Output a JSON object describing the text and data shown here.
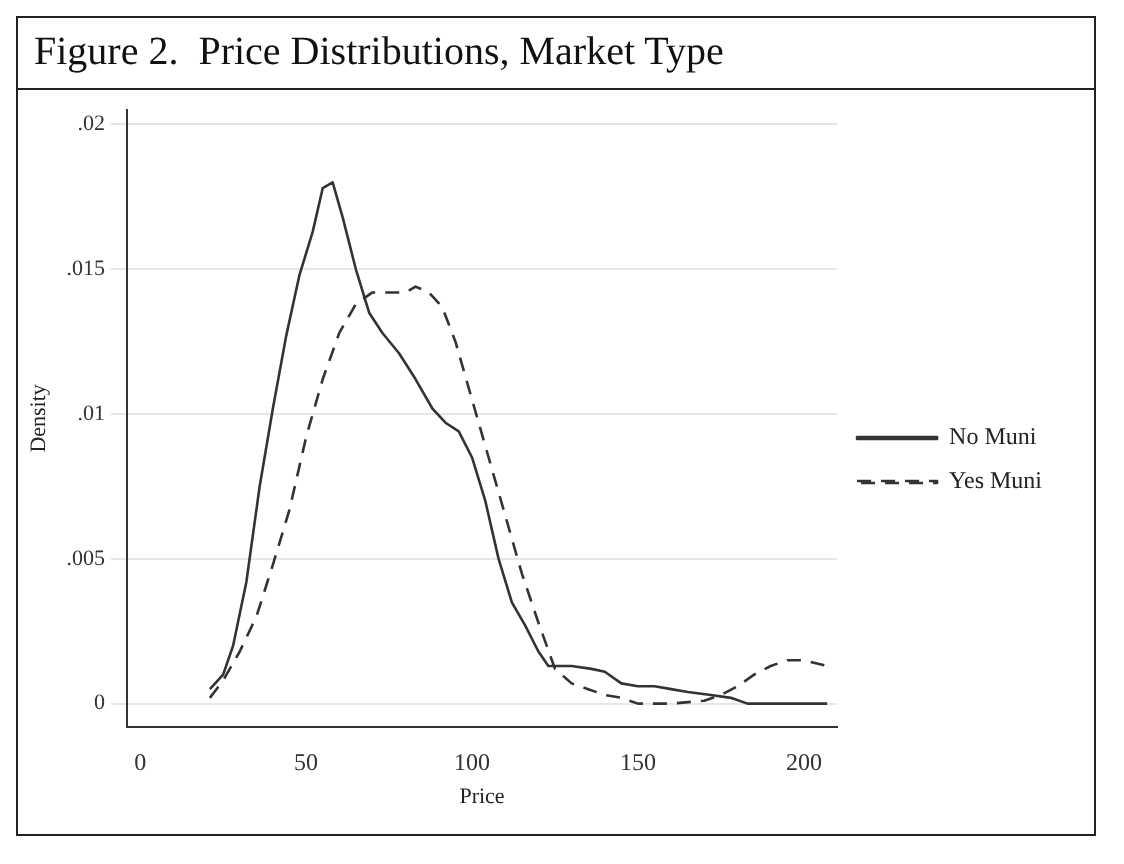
{
  "chart_data": {
    "type": "line",
    "title": "Figure 2.  Price Distributions, Market Type",
    "xlabel": "Price",
    "ylabel": "Density",
    "xlim": [
      -4,
      210
    ],
    "xticks": [
      0,
      50,
      100,
      150,
      200
    ],
    "ylim": [
      -0.0008,
      0.0205
    ],
    "yticks": [
      0,
      {
        "value": 0.005,
        "label": ".005"
      },
      {
        "value": 0.01,
        "label": ".01"
      },
      {
        "value": 0.015,
        "label": ".015"
      },
      {
        "value": 0.02,
        "label": ".02"
      }
    ],
    "grid": "y",
    "legend": "right",
    "marker": "none",
    "series": [
      {
        "name": "No Muni",
        "color": "#333333",
        "line_style": "solid",
        "x": [
          21,
          25,
          28,
          32,
          36,
          40,
          44,
          48,
          52,
          55,
          58,
          61,
          65,
          69,
          73,
          78,
          83,
          88,
          92,
          96,
          100,
          104,
          108,
          112,
          116,
          120,
          123,
          130,
          136,
          140,
          145,
          150,
          155,
          160,
          165,
          172,
          178,
          183,
          190,
          200,
          207
        ],
        "values": [
          0.0005,
          0.001,
          0.002,
          0.0042,
          0.0075,
          0.0102,
          0.0127,
          0.0148,
          0.0163,
          0.0178,
          0.018,
          0.0168,
          0.015,
          0.0135,
          0.0128,
          0.0121,
          0.0112,
          0.0102,
          0.0097,
          0.0094,
          0.0085,
          0.007,
          0.005,
          0.0035,
          0.0027,
          0.0018,
          0.0013,
          0.0013,
          0.0012,
          0.0011,
          0.0007,
          0.0006,
          0.0006,
          0.0005,
          0.0004,
          0.0003,
          0.0002,
          0,
          0,
          0,
          0
        ]
      },
      {
        "name": "Yes Muni",
        "color": "#333333",
        "line_style": "dashed",
        "x": [
          21,
          25,
          30,
          35,
          40,
          45,
          50,
          55,
          60,
          65,
          70,
          75,
          80,
          83,
          87,
          91,
          95,
          100,
          105,
          110,
          115,
          120,
          125,
          130,
          135,
          140,
          145,
          150,
          160,
          170,
          175,
          180,
          185,
          190,
          195,
          200,
          207
        ],
        "values": [
          0.0002,
          0.0008,
          0.0018,
          0.003,
          0.0048,
          0.0067,
          0.0092,
          0.0112,
          0.0128,
          0.0138,
          0.0142,
          0.0142,
          0.0142,
          0.0144,
          0.0142,
          0.0137,
          0.0125,
          0.0105,
          0.0085,
          0.0065,
          0.0045,
          0.0028,
          0.0012,
          0.0007,
          0.0005,
          0.0003,
          0.0002,
          0,
          0,
          0.0001,
          0.0003,
          0.0006,
          0.001,
          0.0013,
          0.0015,
          0.0015,
          0.0013
        ]
      }
    ]
  }
}
